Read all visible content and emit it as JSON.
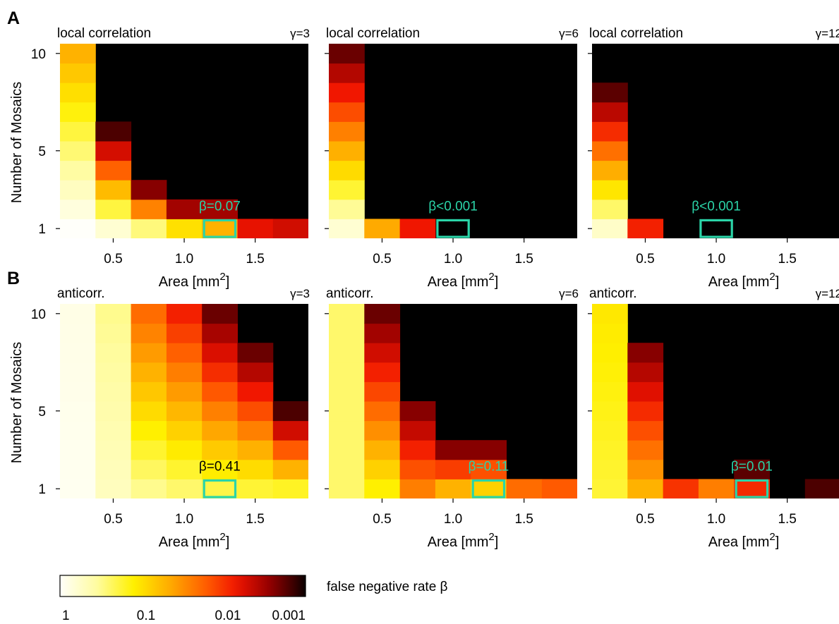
{
  "rows": [
    {
      "label": "A",
      "panel_title": "local correlation"
    },
    {
      "label": "B",
      "panel_title": "anticorr."
    }
  ],
  "axes": {
    "xlabel": "Area [mm",
    "xlabel_sup": "2",
    "xlabel_close": "]",
    "ylabel": "Number of Mosaics",
    "xticks": [
      {
        "value": 0.5,
        "label": "0.5"
      },
      {
        "value": 1.0,
        "label": "1.0"
      },
      {
        "value": 1.5,
        "label": "1.5"
      }
    ],
    "yticks": [
      {
        "value": 1,
        "label": "1"
      },
      {
        "value": 5,
        "label": "5"
      },
      {
        "value": 10,
        "label": "10"
      }
    ]
  },
  "colorbar": {
    "label": "false negative rate β",
    "ticks": [
      "1",
      "0.1",
      "0.01",
      "0.001"
    ],
    "range": [
      1,
      0.001
    ],
    "scale": "log"
  },
  "colors": {
    "highlight": "#2bd4a8",
    "background": "#000000",
    "annotation_light": "#2bd4a8",
    "annotation_dark": "#000000"
  },
  "chart_data": [
    {
      "type": "heatmap",
      "row": "A",
      "gamma_label": "γ=3",
      "annotation": "β=0.07",
      "annotation_color": "#2bd4a8",
      "highlight": {
        "col": 4,
        "row": 0
      },
      "colored_cells_per_column": [
        10,
        6,
        3,
        2,
        2,
        1,
        1
      ],
      "min_log": [
        0.0,
        0.2,
        0.55,
        1.0,
        1.3,
        2.2,
        2.3
      ],
      "max_log": [
        1.3,
        2.8,
        2.6,
        2.5,
        2.5,
        2.2,
        2.3
      ]
    },
    {
      "type": "heatmap",
      "row": "A",
      "gamma_label": "γ=6",
      "annotation": "β<0.001",
      "annotation_color": "#2bd4a8",
      "highlight": {
        "col": 3,
        "row": 0
      },
      "colored_cells_per_column": [
        10,
        1,
        1,
        0,
        0,
        0,
        0
      ],
      "min_log": [
        0.2,
        1.35,
        2.15,
        0,
        0,
        0,
        0
      ],
      "max_log": [
        2.7,
        1.35,
        2.15,
        0,
        0,
        0,
        0
      ]
    },
    {
      "type": "heatmap",
      "row": "A",
      "gamma_label": "γ=12",
      "annotation": "β<0.001",
      "annotation_color": "#2bd4a8",
      "highlight": {
        "col": 3,
        "row": 0
      },
      "colored_cells_per_column": [
        8,
        1,
        0,
        0,
        0,
        0,
        0
      ],
      "min_log": [
        0.25,
        2.1,
        0,
        0,
        0,
        0,
        0
      ],
      "max_log": [
        2.75,
        2.1,
        0,
        0,
        0,
        0,
        0
      ]
    },
    {
      "type": "heatmap",
      "row": "B",
      "gamma_label": "γ=3",
      "annotation": "β=0.41",
      "annotation_color": "#000000",
      "highlight": {
        "col": 4,
        "row": 0
      },
      "colored_cells_per_column": [
        10,
        10,
        10,
        10,
        10,
        8,
        5
      ],
      "min_log": [
        0.05,
        0.3,
        0.5,
        0.6,
        0.7,
        0.75,
        0.8
      ],
      "max_log": [
        0.1,
        0.5,
        1.7,
        2.1,
        2.7,
        2.7,
        2.8
      ]
    },
    {
      "type": "heatmap",
      "row": "B",
      "gamma_label": "γ=6",
      "annotation": "β=0.11",
      "annotation_color": "#2bd4a8",
      "highlight": {
        "col": 4,
        "row": 0
      },
      "colored_cells_per_column": [
        10,
        10,
        5,
        3,
        3,
        1,
        1
      ],
      "min_log": [
        0.6,
        0.9,
        1.6,
        1.3,
        1.1,
        1.7,
        1.8
      ],
      "max_log": [
        0.6,
        2.7,
        2.6,
        2.6,
        2.6,
        1.7,
        1.8
      ]
    },
    {
      "type": "heatmap",
      "row": "B",
      "gamma_label": "γ=12",
      "annotation": "β=0.01",
      "annotation_color": "#2bd4a8",
      "highlight": {
        "col": 4,
        "row": 0
      },
      "colored_cells_per_column": [
        10,
        8,
        1,
        1,
        2,
        0,
        1
      ],
      "min_log": [
        0.75,
        1.3,
        2.0,
        1.6,
        2.05,
        0,
        2.8
      ],
      "max_log": [
        0.95,
        2.6,
        2.0,
        1.6,
        2.75,
        0,
        2.8
      ]
    }
  ]
}
